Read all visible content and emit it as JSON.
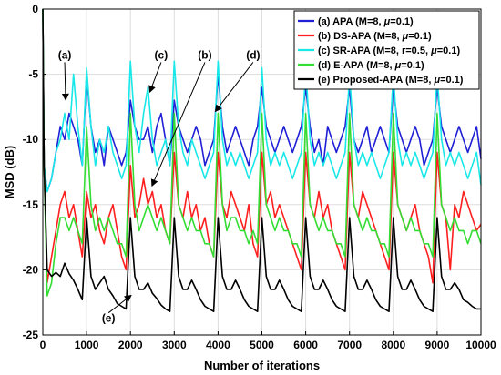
{
  "chart_data": {
    "type": "line",
    "xlabel": "Number of iterations",
    "ylabel": "MSD (dB)",
    "xlim": [
      0,
      10000
    ],
    "ylim": [
      -25,
      0
    ],
    "x_ticks": [
      "0",
      "1000",
      "2000",
      "3000",
      "4000",
      "5000",
      "6000",
      "7000",
      "8000",
      "9000",
      "10000"
    ],
    "y_ticks": [
      "0",
      "-5",
      "-10",
      "-15",
      "-20",
      "-25"
    ],
    "grid": true,
    "legend_position": "top-right",
    "colors": {
      "a": "#1f1fd6",
      "b": "#ff1f1f",
      "c": "#19e8e8",
      "d": "#33dd33",
      "e": "#000000"
    },
    "legend": [
      {
        "key": "a",
        "prefix": "(a) APA (M=8, ",
        "mu": "μ",
        "suffix": "=0.1)"
      },
      {
        "key": "b",
        "prefix": "(b) DS-APA (M=8, ",
        "mu": "μ",
        "suffix": "=0.1)"
      },
      {
        "key": "c",
        "prefix": "(c) SR-APA (M=8, r=0.5, ",
        "mu": "μ",
        "suffix": "=0.1)"
      },
      {
        "key": "d",
        "prefix": "(d) E-APA (M=8, ",
        "mu": "μ",
        "suffix": "=0.1)"
      },
      {
        "key": "e",
        "prefix": "(e) Proposed-APA (M=8, ",
        "mu": "μ",
        "suffix": "=0.1)"
      }
    ],
    "annotations": [
      {
        "label": "(a)",
        "text_x": 500,
        "text_y": -3.8,
        "arrow_to_x": 520,
        "arrow_to_y": -6.9
      },
      {
        "label": "(c)",
        "text_x": 2700,
        "text_y": -3.8,
        "arrow_to_x": 2450,
        "arrow_to_y": -6.3
      },
      {
        "label": "(b)",
        "text_x": 3700,
        "text_y": -3.8,
        "arrow_to_x": 2500,
        "arrow_to_y": -13.5
      },
      {
        "label": "(d)",
        "text_x": 4800,
        "text_y": -3.8,
        "arrow_to_x": 3950,
        "arrow_to_y": -7.8
      },
      {
        "label": "(e)",
        "text_x": 1500,
        "text_y": -24.0,
        "arrow_to_x": 2000,
        "arrow_to_y": -22.0
      }
    ],
    "series": [
      {
        "key": "a",
        "values_x": [
          0,
          30,
          100,
          200,
          300,
          400,
          500,
          600,
          700,
          800,
          900,
          1000,
          1100,
          1200,
          1300,
          1400,
          1500,
          1600,
          1700,
          1800,
          1900,
          2000,
          2100,
          2200,
          2300,
          2400,
          2500,
          2600,
          2700,
          2800,
          2900,
          3000,
          3100,
          3200,
          3300,
          3400,
          3500,
          3600,
          3700,
          3800,
          3900,
          4000,
          4100,
          4200,
          4300,
          4400,
          4500,
          4600,
          4700,
          4800,
          4900,
          5000,
          5100,
          5200,
          5300,
          5400,
          5500,
          5600,
          5700,
          5800,
          5900,
          6000,
          6100,
          6200,
          6300,
          6400,
          6500,
          6600,
          6700,
          6800,
          6900,
          7000,
          7100,
          7200,
          7300,
          7400,
          7500,
          7600,
          7700,
          7800,
          7900,
          8000,
          8100,
          8200,
          8300,
          8400,
          8500,
          8600,
          8700,
          8800,
          8900,
          9000,
          9100,
          9200,
          9300,
          9400,
          9500,
          9600,
          9700,
          9800,
          9900,
          10000
        ],
        "values_y": [
          0,
          -12,
          -14,
          -13,
          -11,
          -9,
          -10,
          -8,
          -9,
          -10,
          -12,
          -5,
          -9,
          -11,
          -10,
          -12,
          -9,
          -10,
          -11,
          -12,
          -11,
          -7,
          -9,
          -10,
          -10,
          -9,
          -11,
          -9,
          -8,
          -10,
          -12,
          -7,
          -9,
          -10,
          -11,
          -10,
          -9,
          -10,
          -12,
          -11,
          -10,
          -5,
          -9,
          -11,
          -10,
          -9,
          -10,
          -11,
          -12,
          -10,
          -9,
          -6,
          -9,
          -10,
          -11,
          -10,
          -9,
          -10,
          -11,
          -10,
          -9,
          -6,
          -9,
          -11,
          -10,
          -12,
          -9,
          -10,
          -11,
          -10,
          -9,
          -6,
          -10,
          -11,
          -10,
          -9,
          -11,
          -10,
          -9,
          -10,
          -11,
          -6,
          -9,
          -10,
          -11,
          -10,
          -9,
          -10,
          -12,
          -11,
          -10,
          -6,
          -9,
          -10,
          -11,
          -10,
          -9,
          -10,
          -11,
          -10,
          -9,
          -11.5
        ]
      },
      {
        "key": "b",
        "values_x": [
          0,
          30,
          100,
          200,
          300,
          400,
          500,
          600,
          700,
          800,
          900,
          1000,
          1100,
          1200,
          1300,
          1400,
          1500,
          1600,
          1700,
          1800,
          1900,
          2000,
          2100,
          2200,
          2300,
          2400,
          2500,
          2600,
          2700,
          2800,
          2900,
          3000,
          3100,
          3200,
          3300,
          3400,
          3500,
          3600,
          3700,
          3800,
          3900,
          4000,
          4100,
          4200,
          4300,
          4400,
          4500,
          4600,
          4700,
          4800,
          4900,
          5000,
          5100,
          5200,
          5300,
          5400,
          5500,
          5600,
          5700,
          5800,
          5900,
          6000,
          6100,
          6200,
          6300,
          6400,
          6500,
          6600,
          6700,
          6800,
          6900,
          7000,
          7100,
          7200,
          7300,
          7400,
          7500,
          7600,
          7700,
          7800,
          7900,
          8000,
          8100,
          8200,
          8300,
          8400,
          8500,
          8600,
          8700,
          8800,
          8900,
          9000,
          9100,
          9200,
          9300,
          9400,
          9500,
          9600,
          9700,
          9800,
          9900,
          10000
        ],
        "values_y": [
          0,
          -12,
          -21,
          -19,
          -17,
          -15,
          -14,
          -16,
          -15,
          -17,
          -19,
          -14,
          -16,
          -15,
          -17,
          -18,
          -16,
          -15,
          -17,
          -19,
          -20,
          -12,
          -16,
          -15,
          -13,
          -15,
          -14,
          -16,
          -15,
          -17,
          -18,
          -11,
          -15,
          -16,
          -14,
          -16,
          -15,
          -17,
          -16,
          -18,
          -19,
          -11,
          -15,
          -16,
          -14,
          -15,
          -16,
          -17,
          -15,
          -18,
          -19,
          -11,
          -15,
          -14,
          -16,
          -15,
          -16,
          -17,
          -18,
          -19,
          -20,
          -11,
          -15,
          -16,
          -14,
          -16,
          -15,
          -17,
          -18,
          -19,
          -20,
          -11,
          -15,
          -16,
          -14,
          -15,
          -16,
          -17,
          -18,
          -19,
          -20,
          -11,
          -15,
          -16,
          -17,
          -16,
          -15,
          -17,
          -18,
          -19,
          -21,
          -11,
          -15,
          -16,
          -20,
          -15,
          -16,
          -14,
          -15,
          -16,
          -17,
          -16.5
        ]
      },
      {
        "key": "c",
        "values_x": [
          0,
          30,
          100,
          200,
          300,
          400,
          500,
          600,
          700,
          800,
          900,
          1000,
          1100,
          1200,
          1300,
          1400,
          1500,
          1600,
          1700,
          1800,
          1900,
          2000,
          2100,
          2200,
          2300,
          2400,
          2500,
          2600,
          2700,
          2800,
          2900,
          3000,
          3100,
          3200,
          3300,
          3400,
          3500,
          3600,
          3700,
          3800,
          3900,
          4000,
          4100,
          4200,
          4300,
          4400,
          4500,
          4600,
          4700,
          4800,
          4900,
          5000,
          5100,
          5200,
          5300,
          5400,
          5500,
          5600,
          5700,
          5800,
          5900,
          6000,
          6100,
          6200,
          6300,
          6400,
          6500,
          6600,
          6700,
          6800,
          6900,
          7000,
          7100,
          7200,
          7300,
          7400,
          7500,
          7600,
          7700,
          7800,
          7900,
          8000,
          8100,
          8200,
          8300,
          8400,
          8500,
          8600,
          8700,
          8800,
          8900,
          9000,
          9100,
          9200,
          9300,
          9400,
          9500,
          9600,
          9700,
          9800,
          9900,
          10000
        ],
        "values_y": [
          0,
          -12,
          -14,
          -13,
          -11,
          -10,
          -8,
          -10,
          -5,
          -9,
          -12,
          -4.5,
          -9,
          -12,
          -10,
          -11,
          -9,
          -11,
          -12,
          -13,
          -12,
          -4,
          -9,
          -11,
          -8,
          -6,
          -10,
          -12,
          -11,
          -10,
          -12,
          -4,
          -9,
          -11,
          -12,
          -10,
          -11,
          -12,
          -13,
          -12,
          -11,
          -4,
          -10,
          -12,
          -11,
          -12,
          -11,
          -12,
          -13,
          -12,
          -11,
          -4.5,
          -10,
          -12,
          -11,
          -12,
          -11,
          -12,
          -13,
          -12,
          -11,
          -4.5,
          -10,
          -12,
          -11,
          -12,
          -11,
          -12,
          -13,
          -12,
          -11,
          -5,
          -10,
          -12,
          -11,
          -12,
          -11,
          -12,
          -13,
          -12,
          -11,
          -5,
          -10,
          -12,
          -11,
          -12,
          -11,
          -12,
          -13,
          -12,
          -11,
          -5,
          -10,
          -12,
          -11,
          -12,
          -11,
          -12,
          -13,
          -12,
          -11,
          -13.5
        ]
      },
      {
        "key": "d",
        "values_x": [
          0,
          30,
          100,
          200,
          300,
          400,
          500,
          600,
          700,
          800,
          900,
          1000,
          1100,
          1200,
          1300,
          1400,
          1500,
          1600,
          1700,
          1800,
          1900,
          2000,
          2100,
          2200,
          2300,
          2400,
          2500,
          2600,
          2700,
          2800,
          2900,
          3000,
          3100,
          3200,
          3300,
          3400,
          3500,
          3600,
          3700,
          3800,
          3900,
          4000,
          4100,
          4200,
          4300,
          4400,
          4500,
          4600,
          4700,
          4800,
          4900,
          5000,
          5100,
          5200,
          5300,
          5400,
          5500,
          5600,
          5700,
          5800,
          5900,
          6000,
          6100,
          6200,
          6300,
          6400,
          6500,
          6600,
          6700,
          6800,
          6900,
          7000,
          7100,
          7200,
          7300,
          7400,
          7500,
          7600,
          7700,
          7800,
          7900,
          8000,
          8100,
          8200,
          8300,
          8400,
          8500,
          8600,
          8700,
          8800,
          8900,
          9000,
          9100,
          9200,
          9300,
          9400,
          9500,
          9600,
          9700,
          9800,
          9900,
          10000
        ],
        "values_y": [
          0,
          -12,
          -22,
          -21,
          -18,
          -16,
          -16,
          -17,
          -16,
          -17,
          -18,
          -9,
          -15,
          -17,
          -16,
          -17,
          -16,
          -17,
          -18,
          -18,
          -19,
          -8,
          -15,
          -17,
          -16,
          -15,
          -16,
          -17,
          -16,
          -17,
          -18,
          -8,
          -15,
          -16,
          -17,
          -16,
          -17,
          -17,
          -18,
          -18,
          -19,
          -8,
          -15,
          -17,
          -16,
          -16,
          -17,
          -17,
          -18,
          -17,
          -18,
          -8,
          -15,
          -16,
          -17,
          -16,
          -17,
          -17,
          -18,
          -18,
          -19,
          -8,
          -15,
          -16,
          -17,
          -16,
          -17,
          -17,
          -18,
          -18,
          -19,
          -8,
          -15,
          -16,
          -17,
          -16,
          -17,
          -17,
          -18,
          -18,
          -19,
          -8,
          -15,
          -16,
          -17,
          -16,
          -17,
          -17,
          -18,
          -18,
          -19,
          -8,
          -15,
          -16,
          -17,
          -16,
          -17,
          -17,
          -18,
          -17,
          -17,
          -18
        ]
      },
      {
        "key": "e",
        "values_x": [
          0,
          30,
          100,
          200,
          300,
          400,
          500,
          600,
          700,
          800,
          900,
          1000,
          1100,
          1200,
          1300,
          1400,
          1500,
          1600,
          1700,
          1800,
          1900,
          2000,
          2100,
          2200,
          2300,
          2400,
          2500,
          2600,
          2700,
          2800,
          2900,
          3000,
          3100,
          3200,
          3300,
          3400,
          3500,
          3600,
          3700,
          3800,
          3900,
          4000,
          4100,
          4200,
          4300,
          4400,
          4500,
          4600,
          4700,
          4800,
          4900,
          5000,
          5100,
          5200,
          5300,
          5400,
          5500,
          5600,
          5700,
          5800,
          5900,
          6000,
          6100,
          6200,
          6300,
          6400,
          6500,
          6600,
          6700,
          6800,
          6900,
          7000,
          7100,
          7200,
          7300,
          7400,
          7500,
          7600,
          7700,
          7800,
          7900,
          8000,
          8100,
          8200,
          8300,
          8400,
          8500,
          8600,
          8700,
          8800,
          8900,
          9000,
          9100,
          9200,
          9300,
          9400,
          9500,
          9600,
          9700,
          9800,
          9900,
          10000
        ],
        "values_y": [
          0,
          -12,
          -20,
          -20.5,
          -20.2,
          -20.5,
          -19.5,
          -20.3,
          -20.8,
          -21.5,
          -22.3,
          -16,
          -20.5,
          -21.5,
          -21,
          -20.5,
          -21.5,
          -22,
          -22.6,
          -22.8,
          -23,
          -16,
          -20.5,
          -21.5,
          -21.5,
          -21,
          -21.8,
          -22.2,
          -22.7,
          -23,
          -23.2,
          -16,
          -20.5,
          -21.5,
          -21.5,
          -20.8,
          -21.5,
          -22.3,
          -22.8,
          -23,
          -23.2,
          -16,
          -20.5,
          -21.5,
          -21.5,
          -20.8,
          -21.5,
          -22.3,
          -22.8,
          -23,
          -23.2,
          -16,
          -20.5,
          -21.5,
          -21.5,
          -20.8,
          -21.5,
          -22.3,
          -22.8,
          -23,
          -23.2,
          -16,
          -20.5,
          -21.5,
          -21.5,
          -20.8,
          -21.5,
          -22.3,
          -22.8,
          -23,
          -23.2,
          -16,
          -20.5,
          -21.5,
          -21.5,
          -20.8,
          -21.5,
          -22.3,
          -22.8,
          -23,
          -23.2,
          -16,
          -20.5,
          -21.5,
          -21.5,
          -20.8,
          -21.5,
          -22.3,
          -22.8,
          -23,
          -23.2,
          -16,
          -20.5,
          -21.5,
          -21.5,
          -21,
          -21.5,
          -22.3,
          -22.5,
          -22.8,
          -23,
          -23
        ]
      }
    ]
  }
}
